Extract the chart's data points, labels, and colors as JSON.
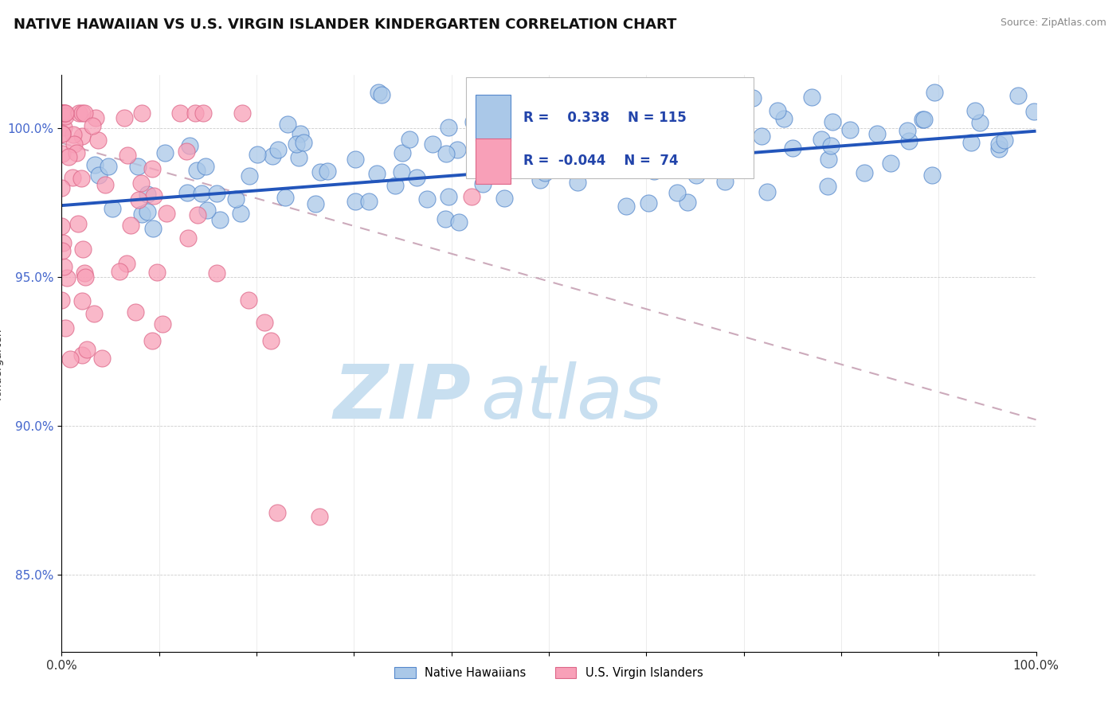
{
  "title": "NATIVE HAWAIIAN VS U.S. VIRGIN ISLANDER KINDERGARTEN CORRELATION CHART",
  "source_text": "Source: ZipAtlas.com",
  "ylabel": "Kindergarten",
  "ytick_labels": [
    "85.0%",
    "90.0%",
    "95.0%",
    "100.0%"
  ],
  "ytick_values": [
    0.85,
    0.9,
    0.95,
    1.0
  ],
  "xmin": 0.0,
  "xmax": 1.0,
  "ymin": 0.824,
  "ymax": 1.018,
  "legend_r_blue": "0.338",
  "legend_n_blue": "115",
  "legend_r_pink": "-0.044",
  "legend_n_pink": "74",
  "blue_color": "#aac8e8",
  "blue_edge_color": "#5588cc",
  "blue_line_color": "#2255bb",
  "pink_color": "#f8a0b8",
  "pink_edge_color": "#dd6688",
  "pink_line_color": "#cc3366",
  "watermark_zip": "ZIP",
  "watermark_atlas": "atlas",
  "watermark_color": "#c8dff0",
  "title_fontsize": 13,
  "label_fontsize": 10,
  "tick_fontsize": 11,
  "source_fontsize": 9,
  "legend_fontsize": 12,
  "blue_n": 115,
  "pink_n": 74
}
